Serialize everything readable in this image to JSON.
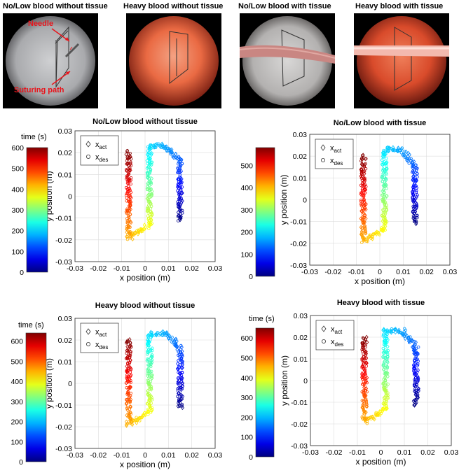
{
  "photos": [
    {
      "title": "No/Low blood without tissue"
    },
    {
      "title": "Heavy blood without tissue"
    },
    {
      "title": "No/Low blood with tissue"
    },
    {
      "title": "Heavy blood with tissue"
    }
  ],
  "annotations": {
    "needle": "Needle",
    "path": "Suturing path"
  },
  "chart_data": [
    {
      "type": "scatter",
      "title": "No/Low blood without tissue",
      "xlabel": "x position (m)",
      "ylabel": "y position (m)",
      "xlim": [
        -0.03,
        0.03
      ],
      "ylim": [
        -0.03,
        0.03
      ],
      "colorbar_label": "time (s)",
      "colorbar_range": [
        0,
        600
      ],
      "colorbar_ticks": [
        0,
        100,
        200,
        300,
        400,
        500,
        600
      ],
      "legend": [
        "x_act",
        "x_des"
      ],
      "grid": true
    },
    {
      "type": "scatter",
      "title": "No/Low blood with tissue",
      "xlabel": "x position (m)",
      "ylabel": "y position (m)",
      "xlim": [
        -0.03,
        0.03
      ],
      "ylim": [
        -0.03,
        0.03
      ],
      "colorbar_label": "",
      "colorbar_range": [
        0,
        580
      ],
      "colorbar_ticks": [
        0,
        100,
        200,
        300,
        400,
        500
      ],
      "legend": [
        "x_act",
        "x_des"
      ],
      "grid": true
    },
    {
      "type": "scatter",
      "title": "Heavy blood without tissue",
      "xlabel": "x position (m)",
      "ylabel": "y position (m)",
      "xlim": [
        -0.03,
        0.03
      ],
      "ylim": [
        -0.03,
        0.03
      ],
      "colorbar_label": "time (s)",
      "colorbar_range": [
        0,
        640
      ],
      "colorbar_ticks": [
        0,
        100,
        200,
        300,
        400,
        500,
        600
      ],
      "colorbar_tick_labels": [
        "0",
        "100",
        "200",
        "300",
        "400",
        "500",
        "600"
      ],
      "legend": [
        "x_act",
        "x_des"
      ],
      "grid": true
    },
    {
      "type": "scatter",
      "title": "Heavy blood with tissue",
      "xlabel": "x position (m)",
      "ylabel": "y position (m)",
      "xlim": [
        -0.03,
        0.03
      ],
      "ylim": [
        -0.03,
        0.03
      ],
      "colorbar_label": "time (s)",
      "colorbar_range": [
        0,
        650
      ],
      "colorbar_ticks": [
        0,
        100,
        200,
        300,
        400,
        500,
        600
      ],
      "legend": [
        "x_act",
        "x_des"
      ],
      "grid": true
    }
  ],
  "colors": {
    "annotation": "#e8141b",
    "axes": "#262626",
    "grid": "#dcdcdc"
  },
  "path_points": [
    [
      0.015,
      -0.011
    ],
    [
      0.015,
      0.016
    ],
    [
      0.009,
      0.023
    ],
    [
      0.002,
      0.023
    ],
    [
      0.002,
      -0.013
    ],
    [
      -0.007,
      -0.019
    ],
    [
      -0.007,
      0.02
    ]
  ]
}
